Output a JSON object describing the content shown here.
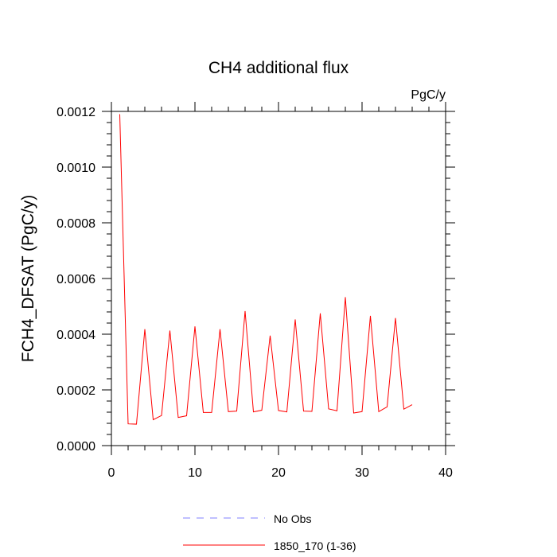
{
  "chart_data": {
    "type": "line",
    "title": "CH4 additional flux",
    "units_label": "PgC/y",
    "ylabel": "FCH4_DFSAT  (PgC/y)",
    "xlabel": "",
    "xlim": [
      0,
      40
    ],
    "ylim": [
      0,
      0.0012
    ],
    "x_ticks": [
      0,
      10,
      20,
      30,
      40
    ],
    "y_ticks": [
      0.0,
      0.0002,
      0.0004,
      0.0006,
      0.0008,
      0.001,
      0.0012
    ],
    "y_tick_labels": [
      "0.0000",
      "0.0002",
      "0.0004",
      "0.0006",
      "0.0008",
      "0.0010",
      "0.0012"
    ],
    "series": [
      {
        "name": "No Obs",
        "color": "#8080ff",
        "dash": "dashed",
        "x": [],
        "values": []
      },
      {
        "name": "1850_170 (1-36)",
        "color": "#ff0000",
        "dash": "solid",
        "x": [
          1,
          2,
          3,
          4,
          5,
          6,
          7,
          8,
          9,
          10,
          11,
          12,
          13,
          14,
          15,
          16,
          17,
          18,
          19,
          20,
          21,
          22,
          23,
          24,
          25,
          26,
          27,
          28,
          29,
          30,
          31,
          32,
          33,
          34,
          35,
          36
        ],
        "values": [
          0.00119,
          7.8e-05,
          7.7e-05,
          0.000418,
          9.3e-05,
          0.000108,
          0.000413,
          0.000101,
          0.000107,
          0.000428,
          0.000119,
          0.000119,
          0.000418,
          0.000122,
          0.000124,
          0.000483,
          0.000121,
          0.000127,
          0.000395,
          0.000126,
          0.000121,
          0.000453,
          0.000124,
          0.000123,
          0.000475,
          0.000132,
          0.000125,
          0.000533,
          0.000117,
          0.000122,
          0.000466,
          0.000122,
          0.000139,
          0.000458,
          0.000131,
          0.000147
        ]
      }
    ]
  }
}
